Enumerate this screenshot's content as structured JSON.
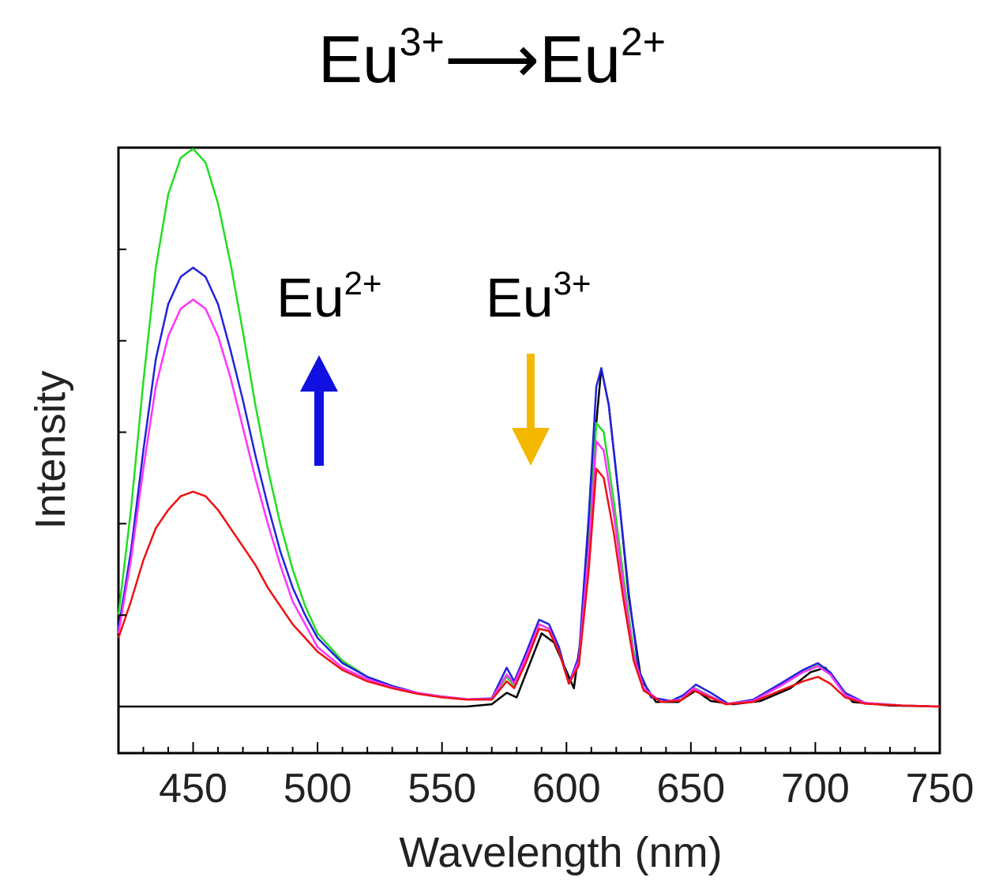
{
  "title": {
    "base1": "Eu",
    "sup1": "3+",
    "arrow": "⟶",
    "base2": "Eu",
    "sup2": "2+"
  },
  "annotations": {
    "eu2": {
      "base": "Eu",
      "sup": "2+",
      "arrow_direction": "up",
      "arrow_color": "#1010e0"
    },
    "eu3": {
      "base": "Eu",
      "sup": "3+",
      "arrow_direction": "down",
      "arrow_color": "#f5b800"
    }
  },
  "chart_data": {
    "type": "line",
    "xlabel": "Wavelength (nm)",
    "ylabel": "Intensity",
    "xlim": [
      420,
      750
    ],
    "ylim": [
      0,
      1.2
    ],
    "xticks": [
      450,
      500,
      550,
      600,
      650,
      700,
      750
    ],
    "grid": false,
    "series": [
      {
        "color": "#000000",
        "points": [
          [
            420,
            0
          ],
          [
            500,
            0
          ],
          [
            560,
            0
          ],
          [
            570,
            0.005
          ],
          [
            576,
            0.03
          ],
          [
            580,
            0.02
          ],
          [
            585,
            0.09
          ],
          [
            590,
            0.16
          ],
          [
            595,
            0.14
          ],
          [
            599,
            0.09
          ],
          [
            603,
            0.04
          ],
          [
            607,
            0.2
          ],
          [
            611,
            0.56
          ],
          [
            614,
            0.74
          ],
          [
            617,
            0.66
          ],
          [
            621,
            0.46
          ],
          [
            625,
            0.24
          ],
          [
            630,
            0.06
          ],
          [
            636,
            0.01
          ],
          [
            645,
            0.01
          ],
          [
            652,
            0.035
          ],
          [
            658,
            0.012
          ],
          [
            667,
            0.005
          ],
          [
            678,
            0.012
          ],
          [
            690,
            0.04
          ],
          [
            698,
            0.075
          ],
          [
            704,
            0.085
          ],
          [
            709,
            0.05
          ],
          [
            715,
            0.01
          ],
          [
            730,
            0.002
          ],
          [
            750,
            0
          ]
        ]
      },
      {
        "color": "#22dd22",
        "points": [
          [
            420,
            0.2
          ],
          [
            425,
            0.43
          ],
          [
            430,
            0.71
          ],
          [
            435,
            0.96
          ],
          [
            440,
            1.12
          ],
          [
            445,
            1.2
          ],
          [
            450,
            1.22
          ],
          [
            455,
            1.19
          ],
          [
            460,
            1.1
          ],
          [
            465,
            0.97
          ],
          [
            470,
            0.82
          ],
          [
            475,
            0.66
          ],
          [
            480,
            0.52
          ],
          [
            485,
            0.4
          ],
          [
            490,
            0.3
          ],
          [
            495,
            0.22
          ],
          [
            500,
            0.16
          ],
          [
            510,
            0.1
          ],
          [
            520,
            0.065
          ],
          [
            530,
            0.045
          ],
          [
            540,
            0.03
          ],
          [
            550,
            0.022
          ],
          [
            560,
            0.016
          ],
          [
            570,
            0.017
          ],
          [
            576,
            0.065
          ],
          [
            579,
            0.045
          ],
          [
            584,
            0.11
          ],
          [
            589,
            0.18
          ],
          [
            593,
            0.17
          ],
          [
            597,
            0.12
          ],
          [
            601,
            0.05
          ],
          [
            605,
            0.1
          ],
          [
            609,
            0.35
          ],
          [
            612,
            0.62
          ],
          [
            615,
            0.6
          ],
          [
            619,
            0.45
          ],
          [
            623,
            0.28
          ],
          [
            627,
            0.12
          ],
          [
            631,
            0.04
          ],
          [
            638,
            0.01
          ],
          [
            646,
            0.016
          ],
          [
            651,
            0.042
          ],
          [
            656,
            0.028
          ],
          [
            664,
            0.006
          ],
          [
            675,
            0.012
          ],
          [
            686,
            0.045
          ],
          [
            695,
            0.075
          ],
          [
            701,
            0.09
          ],
          [
            706,
            0.07
          ],
          [
            712,
            0.025
          ],
          [
            720,
            0.008
          ],
          [
            735,
            0.002
          ],
          [
            750,
            0
          ]
        ]
      },
      {
        "color": "#2222dd",
        "points": [
          [
            420,
            0.17
          ],
          [
            425,
            0.34
          ],
          [
            430,
            0.56
          ],
          [
            435,
            0.76
          ],
          [
            440,
            0.88
          ],
          [
            445,
            0.94
          ],
          [
            450,
            0.96
          ],
          [
            455,
            0.94
          ],
          [
            460,
            0.88
          ],
          [
            465,
            0.78
          ],
          [
            470,
            0.67
          ],
          [
            475,
            0.55
          ],
          [
            480,
            0.44
          ],
          [
            485,
            0.34
          ],
          [
            490,
            0.26
          ],
          [
            495,
            0.2
          ],
          [
            500,
            0.15
          ],
          [
            510,
            0.095
          ],
          [
            520,
            0.065
          ],
          [
            530,
            0.045
          ],
          [
            540,
            0.03
          ],
          [
            550,
            0.022
          ],
          [
            560,
            0.016
          ],
          [
            570,
            0.018
          ],
          [
            576,
            0.085
          ],
          [
            579,
            0.055
          ],
          [
            584,
            0.12
          ],
          [
            589,
            0.19
          ],
          [
            593,
            0.18
          ],
          [
            597,
            0.13
          ],
          [
            601,
            0.05
          ],
          [
            605,
            0.11
          ],
          [
            609,
            0.42
          ],
          [
            612,
            0.7
          ],
          [
            614,
            0.74
          ],
          [
            617,
            0.66
          ],
          [
            621,
            0.46
          ],
          [
            625,
            0.25
          ],
          [
            629,
            0.08
          ],
          [
            634,
            0.02
          ],
          [
            642,
            0.012
          ],
          [
            647,
            0.025
          ],
          [
            652,
            0.048
          ],
          [
            658,
            0.03
          ],
          [
            665,
            0.006
          ],
          [
            675,
            0.015
          ],
          [
            686,
            0.05
          ],
          [
            695,
            0.08
          ],
          [
            701,
            0.095
          ],
          [
            706,
            0.075
          ],
          [
            712,
            0.03
          ],
          [
            720,
            0.008
          ],
          [
            735,
            0.002
          ],
          [
            750,
            0
          ]
        ]
      },
      {
        "color": "#ff33ff",
        "points": [
          [
            420,
            0.16
          ],
          [
            425,
            0.32
          ],
          [
            430,
            0.52
          ],
          [
            435,
            0.7
          ],
          [
            440,
            0.81
          ],
          [
            445,
            0.87
          ],
          [
            450,
            0.89
          ],
          [
            455,
            0.87
          ],
          [
            460,
            0.81
          ],
          [
            465,
            0.72
          ],
          [
            470,
            0.61
          ],
          [
            475,
            0.5
          ],
          [
            480,
            0.4
          ],
          [
            485,
            0.31
          ],
          [
            490,
            0.23
          ],
          [
            495,
            0.18
          ],
          [
            500,
            0.13
          ],
          [
            510,
            0.085
          ],
          [
            520,
            0.06
          ],
          [
            530,
            0.042
          ],
          [
            540,
            0.03
          ],
          [
            550,
            0.022
          ],
          [
            560,
            0.016
          ],
          [
            570,
            0.017
          ],
          [
            576,
            0.07
          ],
          [
            579,
            0.05
          ],
          [
            584,
            0.11
          ],
          [
            589,
            0.18
          ],
          [
            593,
            0.17
          ],
          [
            597,
            0.12
          ],
          [
            601,
            0.05
          ],
          [
            605,
            0.1
          ],
          [
            609,
            0.34
          ],
          [
            612,
            0.58
          ],
          [
            615,
            0.56
          ],
          [
            619,
            0.42
          ],
          [
            623,
            0.26
          ],
          [
            627,
            0.11
          ],
          [
            631,
            0.04
          ],
          [
            638,
            0.01
          ],
          [
            646,
            0.015
          ],
          [
            651,
            0.04
          ],
          [
            656,
            0.027
          ],
          [
            664,
            0.006
          ],
          [
            675,
            0.012
          ],
          [
            686,
            0.045
          ],
          [
            695,
            0.075
          ],
          [
            701,
            0.088
          ],
          [
            706,
            0.07
          ],
          [
            712,
            0.025
          ],
          [
            720,
            0.008
          ],
          [
            735,
            0.002
          ],
          [
            750,
            0
          ]
        ]
      },
      {
        "color": "#ee1111",
        "points": [
          [
            420,
            0.15
          ],
          [
            425,
            0.23
          ],
          [
            430,
            0.32
          ],
          [
            435,
            0.39
          ],
          [
            440,
            0.43
          ],
          [
            445,
            0.46
          ],
          [
            450,
            0.47
          ],
          [
            455,
            0.46
          ],
          [
            460,
            0.43
          ],
          [
            465,
            0.39
          ],
          [
            470,
            0.35
          ],
          [
            475,
            0.31
          ],
          [
            480,
            0.26
          ],
          [
            485,
            0.22
          ],
          [
            490,
            0.18
          ],
          [
            495,
            0.15
          ],
          [
            500,
            0.12
          ],
          [
            510,
            0.08
          ],
          [
            520,
            0.055
          ],
          [
            530,
            0.04
          ],
          [
            540,
            0.028
          ],
          [
            550,
            0.02
          ],
          [
            560,
            0.015
          ],
          [
            570,
            0.015
          ],
          [
            576,
            0.055
          ],
          [
            579,
            0.04
          ],
          [
            584,
            0.1
          ],
          [
            589,
            0.17
          ],
          [
            593,
            0.165
          ],
          [
            597,
            0.12
          ],
          [
            601,
            0.05
          ],
          [
            605,
            0.09
          ],
          [
            609,
            0.3
          ],
          [
            612,
            0.52
          ],
          [
            615,
            0.5
          ],
          [
            619,
            0.38
          ],
          [
            623,
            0.23
          ],
          [
            627,
            0.1
          ],
          [
            631,
            0.035
          ],
          [
            638,
            0.01
          ],
          [
            646,
            0.013
          ],
          [
            651,
            0.035
          ],
          [
            656,
            0.024
          ],
          [
            664,
            0.005
          ],
          [
            675,
            0.01
          ],
          [
            686,
            0.035
          ],
          [
            695,
            0.055
          ],
          [
            701,
            0.065
          ],
          [
            706,
            0.05
          ],
          [
            712,
            0.02
          ],
          [
            720,
            0.006
          ],
          [
            735,
            0.002
          ],
          [
            750,
            0
          ]
        ]
      }
    ]
  }
}
